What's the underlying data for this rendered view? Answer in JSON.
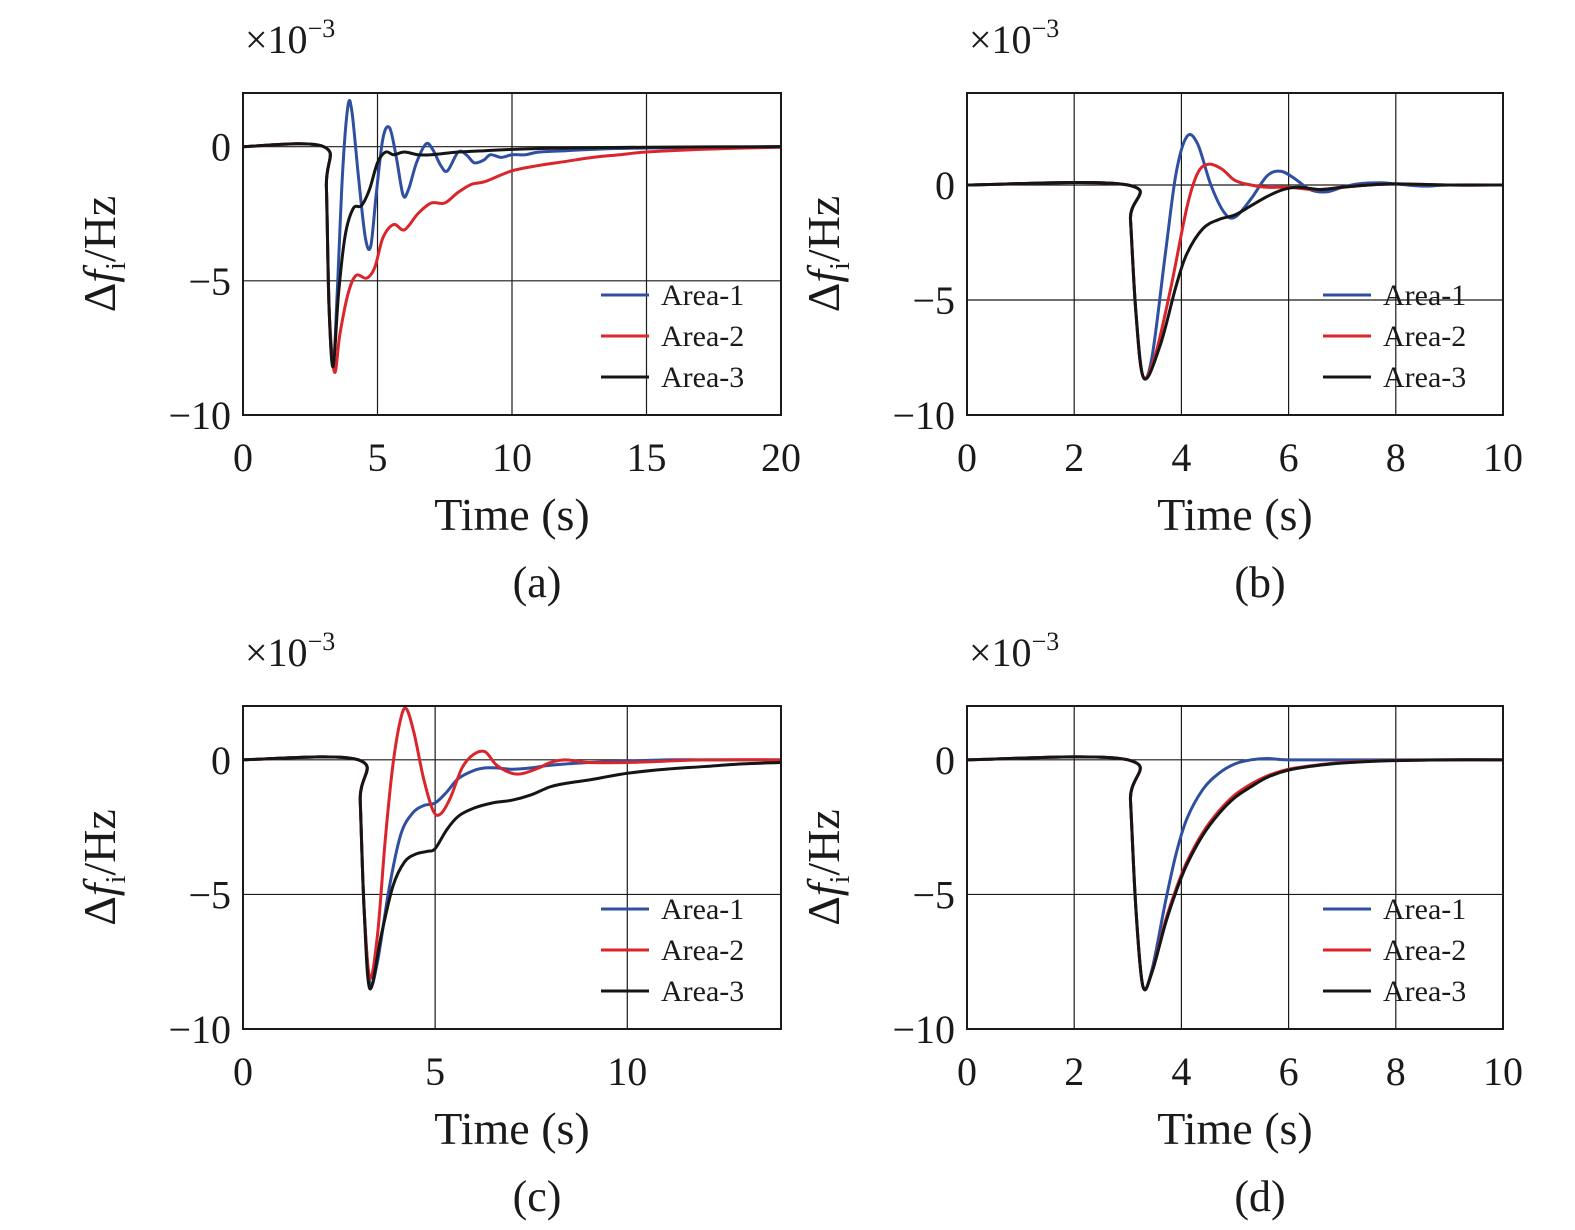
{
  "colors": {
    "area1": "#2f4fa0",
    "area2": "#d9252b",
    "area3": "#151515"
  },
  "chart_data": [
    {
      "type": "line",
      "caption": "(a)",
      "xlabel": "Time (s)",
      "ylabel": "Δf_i/Hz",
      "y_multiplier": "×10^-3",
      "xlim": [
        0,
        20
      ],
      "ylim": [
        -10,
        2
      ],
      "xticks": [
        0,
        5,
        10,
        15,
        20
      ],
      "yticks": [
        -10,
        -5,
        0
      ],
      "grid": true,
      "legend": "bottom-right",
      "series": [
        {
          "name": "Area-1",
          "x": [
            0,
            3.0,
            3.1,
            3.2,
            3.35,
            3.5,
            3.7,
            3.9,
            4.05,
            4.3,
            4.55,
            4.75,
            4.95,
            5.2,
            5.45,
            5.7,
            5.95,
            6.15,
            6.45,
            6.8,
            7.05,
            7.35,
            7.6,
            8.0,
            8.3,
            8.6,
            8.95,
            9.2,
            9.6,
            10.0,
            10.5,
            11.0,
            12.0,
            13.0,
            15.0,
            20.0
          ],
          "y": [
            0,
            0,
            -1.5,
            -6.0,
            -8.2,
            -5.5,
            -1.0,
            1.5,
            1.3,
            -1.2,
            -3.4,
            -3.7,
            -1.8,
            0.3,
            0.7,
            -0.4,
            -1.8,
            -1.6,
            -0.6,
            0.1,
            -0.1,
            -0.7,
            -0.9,
            -0.2,
            -0.3,
            -0.6,
            -0.5,
            -0.3,
            -0.4,
            -0.3,
            -0.3,
            -0.2,
            -0.15,
            -0.1,
            -0.05,
            0
          ]
        },
        {
          "name": "Area-2",
          "x": [
            0,
            3.0,
            3.1,
            3.2,
            3.4,
            3.6,
            3.9,
            4.2,
            4.6,
            4.9,
            5.2,
            5.6,
            6.0,
            6.5,
            7.0,
            7.5,
            8.0,
            8.5,
            9.0,
            10.0,
            11.0,
            12.0,
            13.0,
            14.0,
            15.0,
            17.0,
            20.0
          ],
          "y": [
            0,
            0,
            -1.5,
            -6.0,
            -8.4,
            -7.0,
            -5.5,
            -4.8,
            -4.9,
            -4.5,
            -3.4,
            -2.9,
            -3.1,
            -2.5,
            -2.1,
            -2.1,
            -1.7,
            -1.4,
            -1.3,
            -0.9,
            -0.7,
            -0.55,
            -0.4,
            -0.3,
            -0.2,
            -0.1,
            -0.02
          ]
        },
        {
          "name": "Area-3",
          "x": [
            0,
            3.0,
            3.1,
            3.2,
            3.35,
            3.55,
            3.8,
            4.1,
            4.4,
            4.7,
            5.0,
            5.3,
            5.6,
            6.0,
            6.5,
            7.0,
            8.0,
            9.0,
            10.0,
            12.0,
            15.0,
            20.0
          ],
          "y": [
            0,
            0,
            -1.5,
            -6.0,
            -8.2,
            -5.5,
            -3.3,
            -2.3,
            -2.2,
            -1.6,
            -0.6,
            -0.2,
            -0.3,
            -0.2,
            -0.3,
            -0.3,
            -0.2,
            -0.15,
            -0.1,
            -0.05,
            -0.02,
            0
          ]
        }
      ]
    },
    {
      "type": "line",
      "caption": "(b)",
      "xlabel": "Time (s)",
      "ylabel": "Δf_i/Hz",
      "y_multiplier": "×10^-3",
      "xlim": [
        0,
        10
      ],
      "ylim": [
        -10,
        4
      ],
      "xticks": [
        0,
        2,
        4,
        6,
        8,
        10
      ],
      "yticks": [
        -10,
        -5,
        0
      ],
      "grid": true,
      "legend": "bottom-right",
      "series": [
        {
          "name": "Area-1",
          "x": [
            0,
            3.0,
            3.05,
            3.15,
            3.28,
            3.45,
            3.7,
            3.9,
            4.1,
            4.3,
            4.55,
            4.8,
            5.0,
            5.3,
            5.6,
            5.85,
            6.1,
            6.4,
            6.7,
            7.0,
            7.3,
            7.7,
            8.0,
            8.5,
            9.0,
            10.0
          ],
          "y": [
            0,
            0,
            -1.5,
            -5.5,
            -8.3,
            -7.5,
            -3.0,
            0.5,
            2.1,
            1.8,
            0.0,
            -1.2,
            -1.4,
            -0.6,
            0.4,
            0.6,
            0.3,
            -0.2,
            -0.3,
            -0.1,
            0.05,
            0.1,
            0.05,
            -0.05,
            0.0,
            0
          ]
        },
        {
          "name": "Area-2",
          "x": [
            0,
            3.0,
            3.05,
            3.15,
            3.28,
            3.5,
            3.8,
            4.1,
            4.3,
            4.5,
            4.75,
            5.0,
            5.3,
            5.6,
            6.0,
            6.5,
            7.0,
            7.5,
            8.0,
            9.0,
            10.0
          ],
          "y": [
            0,
            0,
            -1.5,
            -5.5,
            -8.3,
            -7.5,
            -4.5,
            -1.0,
            0.5,
            0.9,
            0.7,
            0.2,
            0.0,
            -0.1,
            -0.1,
            -0.2,
            -0.1,
            0.0,
            0.05,
            0.0,
            0
          ]
        },
        {
          "name": "Area-3",
          "x": [
            0,
            3.0,
            3.05,
            3.15,
            3.3,
            3.6,
            3.9,
            4.1,
            4.4,
            4.7,
            5.0,
            5.3,
            5.6,
            5.9,
            6.2,
            6.6,
            7.0,
            7.5,
            8.0,
            9.0,
            10.0
          ],
          "y": [
            0,
            0,
            -1.5,
            -5.5,
            -8.4,
            -7.0,
            -4.4,
            -3.0,
            -1.9,
            -1.5,
            -1.3,
            -0.9,
            -0.5,
            -0.2,
            -0.1,
            -0.2,
            -0.1,
            0.0,
            0.05,
            0.0,
            0
          ]
        }
      ]
    },
    {
      "type": "line",
      "caption": "(c)",
      "xlabel": "Time (s)",
      "ylabel": "Δf_i/Hz",
      "y_multiplier": "×10^-3",
      "xlim": [
        0,
        14
      ],
      "ylim": [
        -10,
        2
      ],
      "xticks": [
        0,
        5,
        10
      ],
      "yticks": [
        -10,
        -5,
        0
      ],
      "grid": true,
      "legend": "bottom-right",
      "series": [
        {
          "name": "Area-1",
          "x": [
            0,
            3.0,
            3.05,
            3.15,
            3.3,
            3.5,
            3.8,
            4.1,
            4.4,
            4.7,
            5.0,
            5.3,
            5.6,
            6.0,
            6.3,
            6.6,
            7.0,
            7.5,
            8.0,
            9.0,
            10.0,
            11.0,
            12.0,
            14.0
          ],
          "y": [
            0,
            0,
            -1.5,
            -5.5,
            -8.3,
            -7.5,
            -4.8,
            -2.8,
            -2.0,
            -1.7,
            -1.6,
            -1.2,
            -0.7,
            -0.4,
            -0.3,
            -0.3,
            -0.35,
            -0.3,
            -0.2,
            -0.1,
            -0.05,
            0.0,
            0.0,
            0
          ]
        },
        {
          "name": "Area-2",
          "x": [
            0,
            3.0,
            3.05,
            3.15,
            3.3,
            3.5,
            3.7,
            3.9,
            4.1,
            4.25,
            4.45,
            4.7,
            4.95,
            5.15,
            5.4,
            5.7,
            6.0,
            6.3,
            6.6,
            7.0,
            7.3,
            7.7,
            8.0,
            8.4,
            9.0,
            10.0,
            11.0,
            12.0,
            14.0
          ],
          "y": [
            0,
            0,
            -1.5,
            -5.5,
            -8.1,
            -6.5,
            -3.0,
            -0.2,
            1.5,
            1.9,
            1.0,
            -0.7,
            -1.9,
            -2.0,
            -1.4,
            -0.3,
            0.2,
            0.3,
            -0.2,
            -0.5,
            -0.5,
            -0.3,
            -0.1,
            0.0,
            -0.1,
            -0.1,
            -0.05,
            0.0,
            0
          ]
        },
        {
          "name": "Area-3",
          "x": [
            0,
            3.0,
            3.05,
            3.15,
            3.3,
            3.6,
            3.9,
            4.2,
            4.5,
            4.8,
            5.0,
            5.3,
            5.6,
            6.0,
            6.5,
            7.0,
            7.5,
            8.0,
            8.5,
            9.0,
            10.0,
            11.0,
            12.0,
            13.0,
            14.0
          ],
          "y": [
            0,
            0,
            -1.5,
            -5.5,
            -8.5,
            -6.5,
            -4.7,
            -3.8,
            -3.5,
            -3.4,
            -3.3,
            -2.6,
            -2.1,
            -1.8,
            -1.6,
            -1.5,
            -1.3,
            -1.0,
            -0.85,
            -0.75,
            -0.5,
            -0.35,
            -0.25,
            -0.15,
            -0.1
          ]
        }
      ]
    },
    {
      "type": "line",
      "caption": "(d)",
      "xlabel": "Time (s)",
      "ylabel": "Δf_i/Hz",
      "y_multiplier": "×10^-3",
      "xlim": [
        0,
        10
      ],
      "ylim": [
        -10,
        2
      ],
      "xticks": [
        0,
        2,
        4,
        6,
        8,
        10
      ],
      "yticks": [
        -10,
        -5,
        0
      ],
      "grid": true,
      "legend": "bottom-right",
      "series": [
        {
          "name": "Area-1",
          "x": [
            0,
            3.0,
            3.05,
            3.15,
            3.28,
            3.45,
            3.7,
            3.9,
            4.1,
            4.4,
            4.7,
            5.0,
            5.3,
            5.6,
            6.0,
            7.0,
            8.0,
            10.0
          ],
          "y": [
            0,
            0,
            -1.5,
            -5.5,
            -8.4,
            -7.8,
            -5.3,
            -3.5,
            -2.2,
            -1.1,
            -0.5,
            -0.15,
            0.0,
            0.05,
            0.0,
            0.0,
            0.0,
            0
          ]
        },
        {
          "name": "Area-2",
          "x": [
            0,
            3.0,
            3.05,
            3.15,
            3.28,
            3.45,
            3.7,
            3.9,
            4.1,
            4.4,
            4.7,
            5.0,
            5.3,
            5.6,
            6.0,
            6.5,
            7.0,
            7.5,
            8.0,
            9.0,
            10.0
          ],
          "y": [
            0,
            0,
            -1.5,
            -5.5,
            -8.4,
            -7.9,
            -6.0,
            -4.8,
            -3.8,
            -2.7,
            -1.9,
            -1.3,
            -0.9,
            -0.6,
            -0.35,
            -0.2,
            -0.1,
            -0.05,
            -0.02,
            0.0,
            0
          ]
        },
        {
          "name": "Area-3",
          "x": [
            0,
            3.0,
            3.05,
            3.15,
            3.28,
            3.45,
            3.7,
            3.9,
            4.1,
            4.4,
            4.7,
            5.0,
            5.3,
            5.6,
            6.0,
            6.5,
            7.0,
            7.5,
            8.0,
            9.0,
            10.0
          ],
          "y": [
            0,
            0,
            -1.5,
            -5.5,
            -8.4,
            -7.9,
            -6.1,
            -4.9,
            -3.9,
            -2.8,
            -2.0,
            -1.4,
            -1.0,
            -0.65,
            -0.38,
            -0.22,
            -0.12,
            -0.06,
            -0.03,
            0.0,
            0
          ]
        }
      ]
    }
  ]
}
